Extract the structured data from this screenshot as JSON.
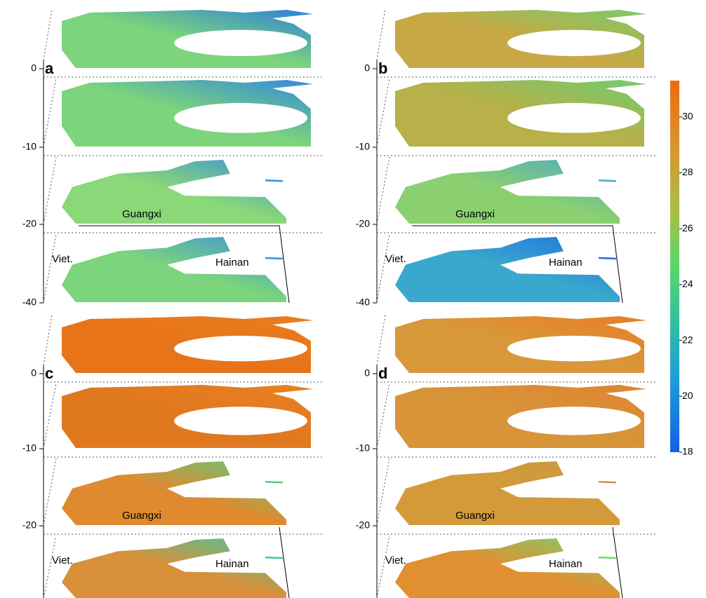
{
  "panels": [
    {
      "label": "a",
      "depth_ticks": [
        0,
        -10,
        -20,
        -40
      ],
      "place_labels": [
        "Guangxi",
        "Viet.",
        "Hainan"
      ]
    },
    {
      "label": "b",
      "depth_ticks": [
        0,
        -10,
        -20,
        -40
      ],
      "place_labels": [
        "Guangxi",
        "Viet.",
        "Hainan"
      ]
    },
    {
      "label": "c",
      "depth_ticks": [
        0,
        -10,
        -20
      ],
      "place_labels": [
        "Guangxi",
        "Viet.",
        "Hainan"
      ]
    },
    {
      "label": "d",
      "depth_ticks": [
        0,
        -10,
        -20
      ],
      "place_labels": [
        "Guangxi",
        "Viet.",
        "Hainan"
      ]
    }
  ],
  "colorbar": {
    "lim": [
      18,
      31.3
    ],
    "ticks": [
      18,
      20,
      22,
      24,
      26,
      28,
      30
    ]
  }
}
